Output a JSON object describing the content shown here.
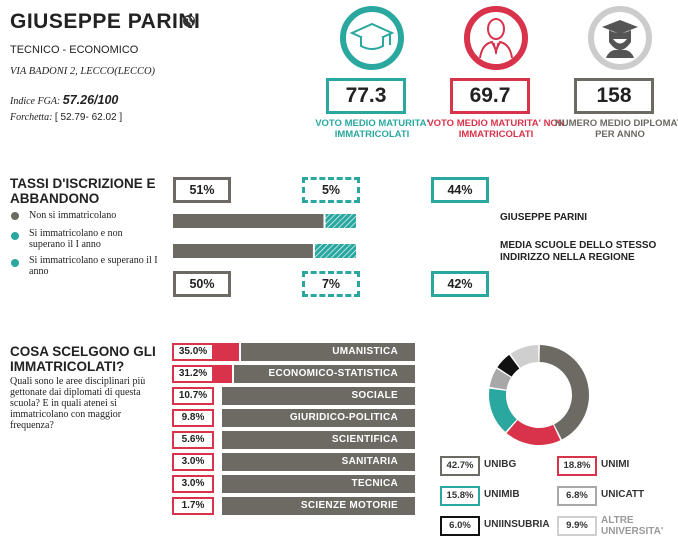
{
  "school": {
    "name": "GIUSEPPE PARINI",
    "type": "TECNICO - ECONOMICO",
    "address": "VIA BADONI 2, LECCO(LECCO)",
    "fga_label": "Indice FGA:",
    "fga_value": "57.26/100",
    "fork_label": "Forchetta:",
    "fork_value": "[ 52.79- 62.02 ]",
    "icon": "globe-icon"
  },
  "stats": [
    {
      "value": "77.3",
      "caption": "VOTO MEDIO MATURITA' IMMATRICOLATI",
      "color": "#2aa8a0",
      "icon": "graduation-cap-icon"
    },
    {
      "value": "69.7",
      "caption": "VOTO MEDIO MATURITA' NON IMMATRICOLATI",
      "color": "#d9334b",
      "icon": "person-tie-icon"
    },
    {
      "value": "158",
      "caption": "NUMERO MEDIO DIPLOMATI PER ANNO",
      "color": "#6d6a63",
      "icon": "graduate-student-icon"
    }
  ],
  "enrollment": {
    "title": "TASSI D'ISCRIZIONE E ABBANDONO",
    "legend": [
      {
        "label": "Non si immatricolano",
        "color": "#6d6a63"
      },
      {
        "label": "Si immatricolano e non superano il I anno",
        "color": "#2aa8a0"
      },
      {
        "label": "Si immatricolano e superano il I anno",
        "color": "#2aa8a0"
      }
    ],
    "school_label": "GIUSEPPE PARINI",
    "region_label": "MEDIA SCUOLE DELLO STESSO INDIRIZZO NELLA REGIONE",
    "school": {
      "not_enrolled": "51%",
      "dropped": "5%",
      "passed": "44%"
    },
    "region": {
      "not_enrolled": "50%",
      "dropped": "7%",
      "passed": "42%"
    },
    "school_values": {
      "not_enrolled": 51,
      "dropped": 5,
      "passed": 44
    },
    "region_values": {
      "not_enrolled": 50,
      "dropped": 7,
      "passed": 42
    }
  },
  "choices": {
    "title": "COSA SCELGONO GLI IMMATRICOLATI?",
    "question": "Quali sono le aree disciplinari più gettonate dai diplomati di questa scuola? E in quali atenei si immatricolano con maggior frequenza?",
    "areas": [
      {
        "label": "UMANISTICA",
        "pct": "35.0%",
        "value": 35.0
      },
      {
        "label": "ECONOMICO-STATISTICA",
        "pct": "31.2%",
        "value": 31.2
      },
      {
        "label": "SOCIALE",
        "pct": "10.7%",
        "value": 10.7
      },
      {
        "label": "GIURIDICO-POLITICA",
        "pct": "9.8%",
        "value": 9.8
      },
      {
        "label": "SCIENTIFICA",
        "pct": "5.6%",
        "value": 5.6
      },
      {
        "label": "SANITARIA",
        "pct": "3.0%",
        "value": 3.0
      },
      {
        "label": "TECNICA",
        "pct": "3.0%",
        "value": 3.0
      },
      {
        "label": "SCIENZE MOTORIE",
        "pct": "1.7%",
        "value": 1.7
      }
    ],
    "universities": [
      {
        "name": "UNIBG",
        "pct": "42.7%",
        "value": 42.7,
        "color": "#6d6a63"
      },
      {
        "name": "UNIMI",
        "pct": "18.8%",
        "value": 18.8,
        "color": "#d9334b"
      },
      {
        "name": "UNIMIB",
        "pct": "15.8%",
        "value": 15.8,
        "color": "#2aa8a0"
      },
      {
        "name": "UNICATT",
        "pct": "6.8%",
        "value": 6.8,
        "color": "#a8a8a8"
      },
      {
        "name": "UNIINSUBRIA",
        "pct": "6.0%",
        "value": 6.0,
        "color": "#111111"
      },
      {
        "name": "ALTRE UNIVERSITA'",
        "pct": "9.9%",
        "value": 9.9,
        "color": "#cfcfcf"
      }
    ]
  },
  "chart_data": {
    "type": "pie",
    "categories": [
      "UNIBG",
      "UNIMI",
      "UNIMIB",
      "UNICATT",
      "UNIINSUBRIA",
      "ALTRE UNIVERSITA'"
    ],
    "values": [
      42.7,
      18.8,
      15.8,
      6.8,
      6.0,
      9.9
    ]
  }
}
